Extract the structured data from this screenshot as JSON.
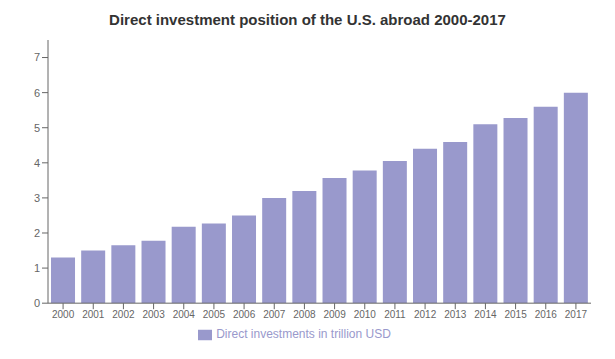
{
  "chart_data": {
    "type": "bar",
    "title": "Direct investment position of the U.S. abroad 2000-2017",
    "categories": [
      "2000",
      "2001",
      "2002",
      "2003",
      "2004",
      "2005",
      "2006",
      "2007",
      "2008",
      "2009",
      "2010",
      "2011",
      "2012",
      "2013",
      "2014",
      "2015",
      "2016",
      "2017"
    ],
    "series": [
      {
        "name": "Direct investments in trillion USD",
        "color": "#9999cc",
        "values": [
          1.3,
          1.5,
          1.65,
          1.78,
          2.18,
          2.27,
          2.5,
          3.0,
          3.2,
          3.57,
          3.78,
          4.05,
          4.4,
          4.59,
          5.1,
          5.28,
          5.6,
          6.0
        ]
      }
    ],
    "ylim": [
      0,
      7.5
    ],
    "yticks": [
      0,
      1,
      2,
      3,
      4,
      5,
      6,
      7
    ],
    "grid": false,
    "legend": "bottom"
  }
}
